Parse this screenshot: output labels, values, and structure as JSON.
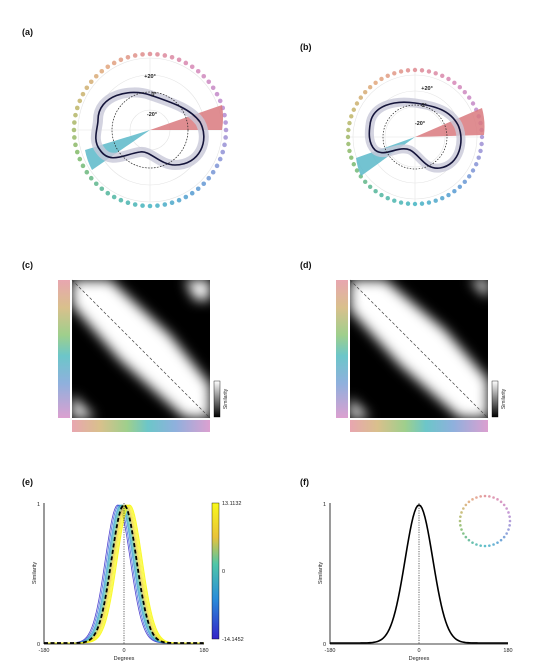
{
  "panels": {
    "a": {
      "label": "(a)",
      "rings": [
        "+20°",
        "0°",
        "-20°"
      ]
    },
    "b": {
      "label": "(b)",
      "rings": [
        "+20°",
        "0°",
        "-20°"
      ]
    },
    "c": {
      "label": "(c)",
      "colorbar_label": "Similarity"
    },
    "d": {
      "label": "(d)",
      "colorbar_label": "Similarity"
    },
    "e": {
      "label": "(e)",
      "colorbar_max": "13.1132",
      "colorbar_mid": "0",
      "colorbar_min": "-14.1452"
    },
    "f": {
      "label": "(f)"
    }
  },
  "chart_data": [
    {
      "panel": "e",
      "type": "line",
      "xlabel": "Degrees",
      "ylabel": "Similarity",
      "xlim": [
        -180,
        180
      ],
      "ylim": [
        0,
        1
      ],
      "xticks": [
        "-180",
        "0",
        "180"
      ],
      "yticks": [
        "0",
        "1"
      ],
      "series_description_colors": [
        "#3a2fd6",
        "#2f8fd8",
        "#4fc6b0",
        "#e8d84a",
        "#f5e81c"
      ],
      "mean_series_style": "dashed black",
      "peak_offsets": [
        -14,
        -11,
        -8,
        -6,
        -4,
        -2,
        0,
        2,
        4,
        6,
        8,
        10,
        12,
        13
      ],
      "gaussian_sigma": 28
    },
    {
      "panel": "f",
      "type": "line",
      "xlabel": "Degrees",
      "ylabel": "Similarity",
      "xlim": [
        -180,
        180
      ],
      "ylim": [
        0,
        1
      ],
      "xticks": [
        "-180",
        "0",
        "180"
      ],
      "yticks": [
        "0",
        "1"
      ],
      "peak_offset": 0,
      "gaussian_sigma": 28
    }
  ],
  "colors": {
    "wheel": [
      "#e39aa0",
      "#e6b48f",
      "#c9c07e",
      "#93c47e",
      "#6cc0a8",
      "#5fbfcb",
      "#6fa9d9",
      "#a0a2dc",
      "#c59bd6",
      "#dc99c2"
    ],
    "outline": "#14143a",
    "sector_red": "#d9797e",
    "sector_teal": "#5ab9c9"
  }
}
